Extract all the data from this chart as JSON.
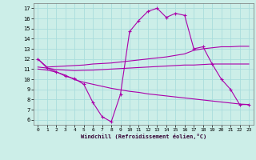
{
  "xlabel": "Windchill (Refroidissement éolien,°C)",
  "bg_color": "#cceee8",
  "grid_color": "#aadddd",
  "line_color": "#aa00aa",
  "ylim": [
    5.5,
    17.5
  ],
  "xlim": [
    -0.5,
    23.5
  ],
  "yticks": [
    6,
    7,
    8,
    9,
    10,
    11,
    12,
    13,
    14,
    15,
    16,
    17
  ],
  "xticks": [
    0,
    1,
    2,
    3,
    4,
    5,
    6,
    7,
    8,
    9,
    10,
    11,
    12,
    13,
    14,
    15,
    16,
    17,
    18,
    19,
    20,
    21,
    22,
    23
  ],
  "series1_x": [
    0,
    1,
    2,
    3,
    4,
    5,
    6,
    7,
    8,
    9,
    10,
    11,
    12,
    13,
    14,
    15,
    16,
    17,
    18,
    19,
    20,
    21,
    22,
    23
  ],
  "series1_y": [
    12.0,
    11.1,
    10.75,
    10.3,
    10.05,
    9.5,
    7.7,
    6.3,
    5.8,
    8.5,
    14.7,
    15.8,
    16.7,
    17.0,
    16.1,
    16.5,
    16.3,
    13.0,
    13.2,
    11.5,
    10.0,
    9.0,
    7.5,
    7.5
  ],
  "series2_x": [
    0,
    1,
    2,
    3,
    4,
    5,
    6,
    7,
    8,
    9,
    10,
    11,
    12,
    13,
    14,
    15,
    16,
    17,
    18,
    19,
    20,
    21,
    22,
    23
  ],
  "series2_y": [
    12.0,
    11.2,
    11.25,
    11.3,
    11.35,
    11.4,
    11.5,
    11.55,
    11.6,
    11.7,
    11.8,
    11.9,
    12.0,
    12.1,
    12.2,
    12.35,
    12.5,
    12.85,
    13.0,
    13.1,
    13.2,
    13.2,
    13.25,
    13.25
  ],
  "series3_x": [
    0,
    1,
    2,
    3,
    4,
    5,
    6,
    7,
    8,
    9,
    10,
    11,
    12,
    13,
    14,
    15,
    16,
    17,
    18,
    19,
    20,
    21,
    22,
    23
  ],
  "series3_y": [
    11.2,
    11.1,
    10.95,
    10.9,
    10.85,
    10.88,
    10.9,
    10.95,
    11.0,
    11.05,
    11.1,
    11.15,
    11.2,
    11.25,
    11.3,
    11.35,
    11.4,
    11.4,
    11.45,
    11.5,
    11.5,
    11.5,
    11.5,
    11.5
  ],
  "series4_x": [
    0,
    1,
    2,
    3,
    4,
    5,
    6,
    7,
    8,
    9,
    10,
    11,
    12,
    13,
    14,
    15,
    16,
    17,
    18,
    19,
    20,
    21,
    22,
    23
  ],
  "series4_y": [
    11.0,
    10.9,
    10.7,
    10.4,
    9.95,
    9.7,
    9.5,
    9.3,
    9.1,
    8.95,
    8.8,
    8.7,
    8.55,
    8.45,
    8.35,
    8.25,
    8.15,
    8.05,
    7.95,
    7.85,
    7.75,
    7.65,
    7.55,
    7.5
  ]
}
